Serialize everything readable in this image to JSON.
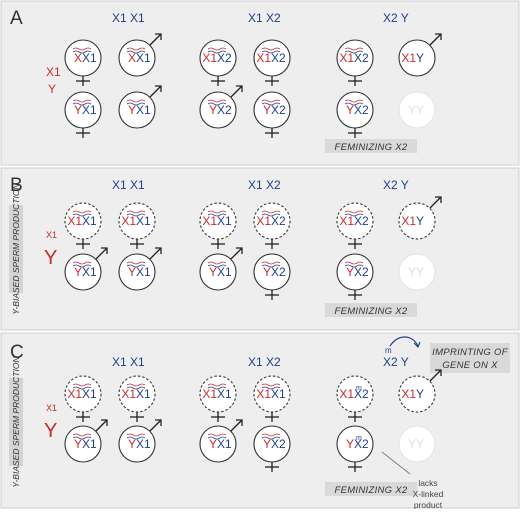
{
  "panels": [
    {
      "letter": "A",
      "headers": [
        "X1  X1",
        "X1  X2",
        "X2 Y"
      ],
      "sperm": {
        "x": "X1",
        "y": "Y"
      },
      "side_label": "",
      "dashed": false,
      "rows": [
        [
          {
            "a": "X",
            "b": "X1",
            "sym": "female",
            "w": true
          },
          {
            "a": "X",
            "b": "X1",
            "sym": "male",
            "w": true
          },
          {
            "a": "X1",
            "b": "X2",
            "sym": "female",
            "w": true
          },
          {
            "a": "X1",
            "b": "X2",
            "sym": "female",
            "w": true
          },
          {
            "a": "X1",
            "b": "X2",
            "sym": "female",
            "w": true
          },
          {
            "a": "X1",
            "b": "Y",
            "sym": "male",
            "w": false
          }
        ],
        [
          {
            "a": "Y",
            "b": "X1",
            "sym": "female",
            "w": true
          },
          {
            "a": "Y",
            "b": "X1",
            "sym": "male",
            "w": true
          },
          {
            "a": "Y",
            "b": "X2",
            "sym": "male",
            "w": true
          },
          {
            "a": "Y",
            "b": "X2",
            "sym": "female",
            "w": true
          },
          {
            "a": "Y",
            "b": "X2",
            "sym": "female",
            "w": true
          },
          {
            "a": "Y",
            "b": "Y",
            "sym": "none",
            "w": false,
            "ghost": true
          }
        ]
      ],
      "feminizing": "FEMINIZING X2"
    },
    {
      "letter": "B",
      "headers": [
        "X1  X1",
        "X1  X2",
        "X2 Y"
      ],
      "sperm": {
        "x": "X1",
        "y": "Y"
      },
      "side_label": "Y-BIASED SPERM PRODUCTION",
      "dashed": true,
      "rows": [
        [
          {
            "a": "X1",
            "b": "X1",
            "sym": "female",
            "w": true
          },
          {
            "a": "X1",
            "b": "X1",
            "sym": "female",
            "w": true
          },
          {
            "a": "X1",
            "b": "X1",
            "sym": "female",
            "w": true
          },
          {
            "a": "X1",
            "b": "X2",
            "sym": "female",
            "w": true
          },
          {
            "a": "X1",
            "b": "X2",
            "sym": "female",
            "w": true
          },
          {
            "a": "X1",
            "b": "Y",
            "sym": "male",
            "w": false
          }
        ],
        [
          {
            "a": "Y",
            "b": "X1",
            "sym": "male",
            "w": true
          },
          {
            "a": "Y",
            "b": "X1",
            "sym": "male",
            "w": true
          },
          {
            "a": "Y",
            "b": "X1",
            "sym": "male",
            "w": true
          },
          {
            "a": "Y",
            "b": "X2",
            "sym": "female",
            "w": true
          },
          {
            "a": "Y",
            "b": "X2",
            "sym": "female",
            "w": true
          },
          {
            "a": "Y",
            "b": "Y",
            "sym": "none",
            "w": false,
            "ghost": true
          }
        ]
      ],
      "feminizing": "FEMINIZING X2"
    },
    {
      "letter": "C",
      "headers": [
        "X1  X1",
        "X1  X2",
        "X2 Y"
      ],
      "sperm": {
        "x": "X1",
        "y": "Y"
      },
      "side_label": "Y-BIASED SPERM PRODUCTION",
      "dashed": true,
      "rows": [
        [
          {
            "a": "X1",
            "b": "X1",
            "sym": "female",
            "w": true
          },
          {
            "a": "X1",
            "b": "X1",
            "sym": "female",
            "w": true
          },
          {
            "a": "X1",
            "b": "X1",
            "sym": "female",
            "w": true
          },
          {
            "a": "X1",
            "b": "X1",
            "sym": "female",
            "w": true
          },
          {
            "a": "X1",
            "b": "X2",
            "sym": "female",
            "w": false,
            "imprint": "m"
          },
          {
            "a": "X1",
            "b": "Y",
            "sym": "male",
            "w": false
          }
        ],
        [
          {
            "a": "Y",
            "b": "X1",
            "sym": "male",
            "w": true
          },
          {
            "a": "Y",
            "b": "X1",
            "sym": "male",
            "w": true
          },
          {
            "a": "Y",
            "b": "X1",
            "sym": "male",
            "w": true
          },
          {
            "a": "Y",
            "b": "X2",
            "sym": "female",
            "w": true
          },
          {
            "a": "Y",
            "b": "X2",
            "sym": "female",
            "w": false,
            "imprint": "m"
          },
          {
            "a": "Y",
            "b": "Y",
            "sym": "none",
            "w": false,
            "ghost": true
          }
        ]
      ],
      "feminizing": "FEMINIZING X2",
      "imprinting_label": "IMPRINTING OF GENE ON X",
      "imprint_mark": "m",
      "note": "lacks X-linked product"
    }
  ],
  "colors": {
    "x_red": "#cc2a2a",
    "x_blue": "#1f3f8f",
    "ghost": "#dedede"
  }
}
